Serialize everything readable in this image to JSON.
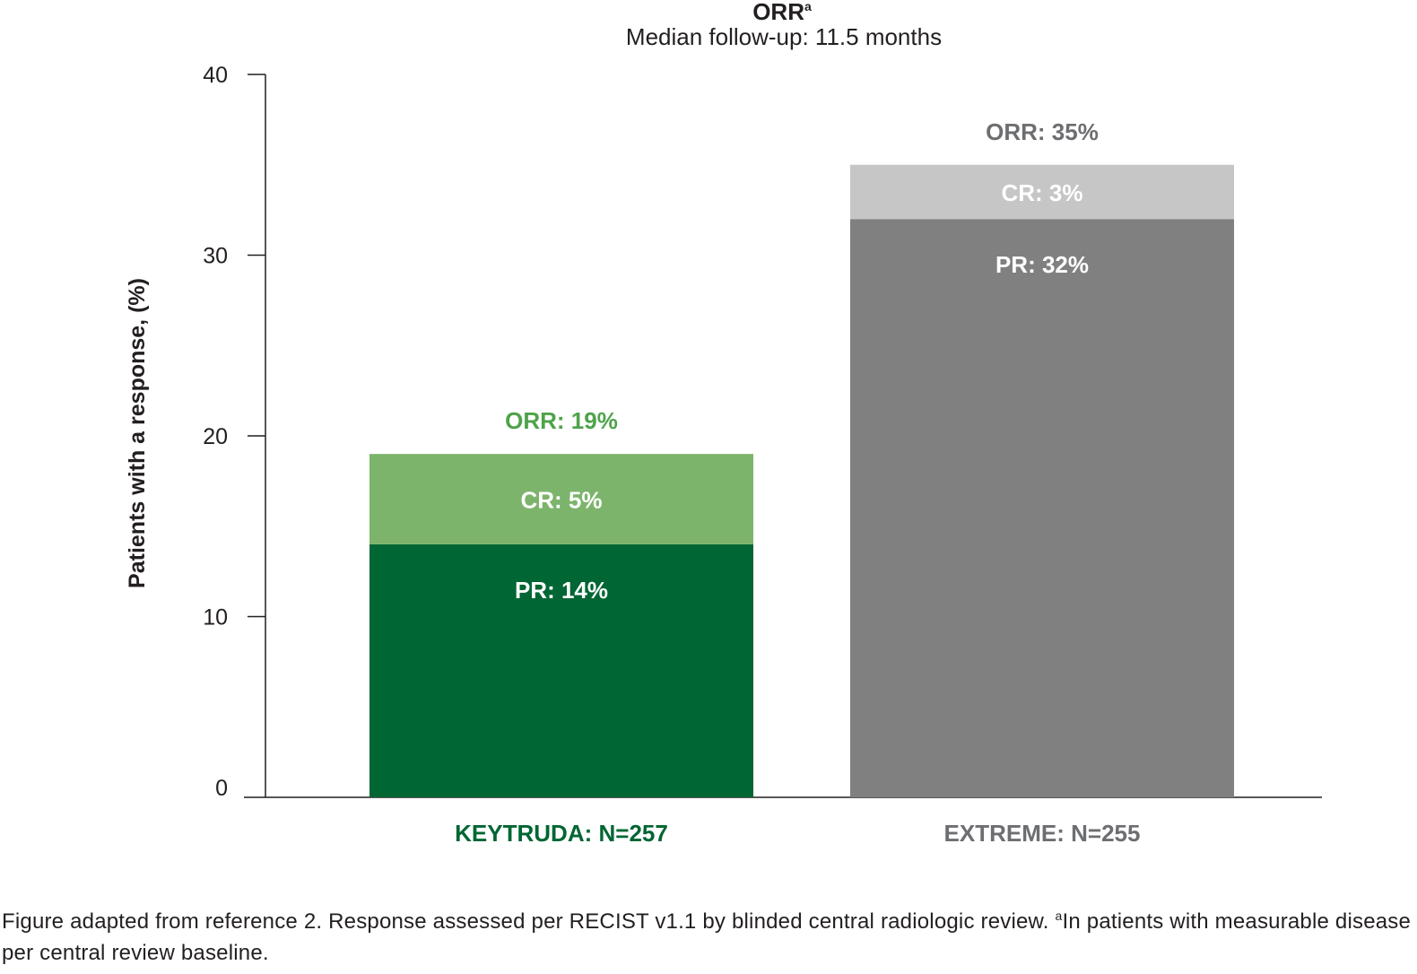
{
  "chart_data": {
    "type": "bar",
    "stacked": true,
    "title": "ORR",
    "title_superscript": "a",
    "subtitle": "Median follow-up: 11.5 months",
    "ylabel": "Patients with a response, (%)",
    "ylim": [
      0,
      40
    ],
    "yticks": [
      0,
      10,
      20,
      30,
      40
    ],
    "grid": false,
    "categories": [
      "KEYTRUDA: N=257",
      "EXTREME: N=255"
    ],
    "series": [
      {
        "name": "PR",
        "values": [
          14,
          32
        ],
        "labels": [
          "PR: 14%",
          "PR: 32%"
        ],
        "colors": [
          "#006633",
          "#808080"
        ]
      },
      {
        "name": "CR",
        "values": [
          5,
          3
        ],
        "labels": [
          "CR: 5%",
          "CR: 3%"
        ],
        "colors": [
          "#7db46c",
          "#c6c6c6"
        ]
      }
    ],
    "totals": {
      "values": [
        19,
        35
      ],
      "labels": [
        "ORR: 19%",
        "ORR: 35%"
      ],
      "colors": [
        "#4ea34a",
        "#6d6e71"
      ]
    },
    "category_colors": [
      "#006633",
      "#6d6e71"
    ]
  },
  "footnote": {
    "text": "Figure adapted from reference 2. Response assessed per RECIST v1.1 by blinded central radiologic review. ",
    "superscript": "a",
    "text2": "In patients with measurable disease per central review baseline."
  }
}
